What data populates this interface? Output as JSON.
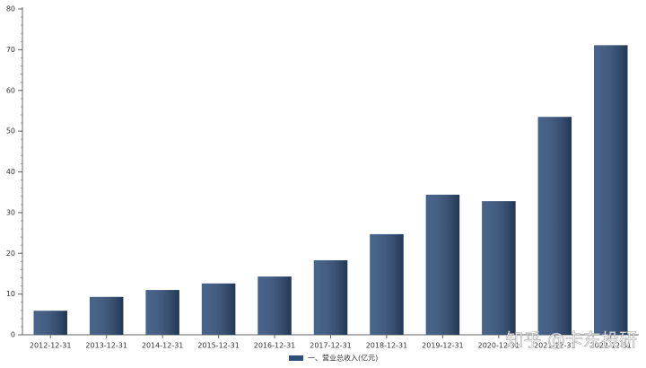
{
  "chart_data": {
    "type": "bar",
    "categories": [
      "2012-12-31",
      "2013-12-31",
      "2014-12-31",
      "2015-12-31",
      "2016-12-31",
      "2017-12-31",
      "2018-12-31",
      "2019-12-31",
      "2020-12-31",
      "2021-12-31",
      "2022-12-31"
    ],
    "series": [
      {
        "name": "一、营业总收入(亿元)",
        "color": "#2f4e7a",
        "values": [
          5.9,
          9.3,
          11.0,
          12.6,
          14.3,
          18.3,
          24.7,
          34.4,
          32.8,
          53.5,
          71.1
        ]
      }
    ],
    "ylim": [
      0,
      80
    ],
    "yticks": [
      0,
      10,
      20,
      30,
      40,
      50,
      60,
      70,
      80
    ],
    "grid": false,
    "legend": "bottom",
    "watermark": "知乎 @卡东投研"
  }
}
